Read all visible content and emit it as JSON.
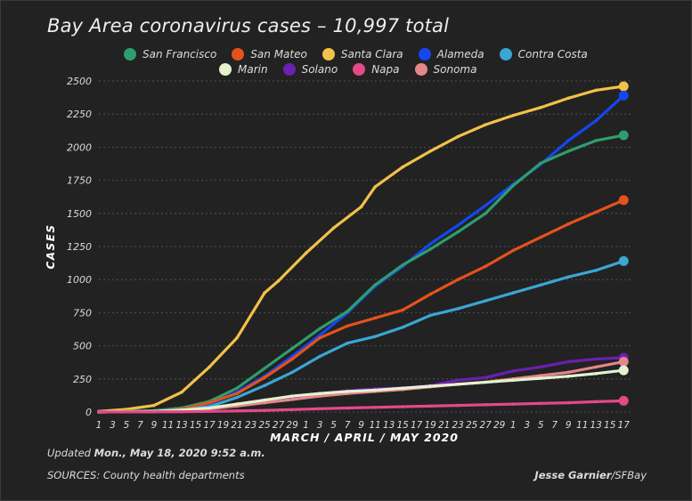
{
  "header": {
    "title": "Bay Area coronavirus cases – 10,997 total"
  },
  "legend": {
    "row1": [
      {
        "label": "San Francisco",
        "color": "#2e9e6e"
      },
      {
        "label": "San Mateo",
        "color": "#e5521c"
      },
      {
        "label": "Santa Clara",
        "color": "#f2c14a"
      },
      {
        "label": "Alameda",
        "color": "#1646f0"
      },
      {
        "label": "Contra Costa",
        "color": "#3aa7d3"
      }
    ],
    "row2": [
      {
        "label": "Marin",
        "color": "#e4f2cf"
      },
      {
        "label": "Solano",
        "color": "#6a20b0"
      },
      {
        "label": "Napa",
        "color": "#e44987"
      },
      {
        "label": "Sonoma",
        "color": "#e4868a"
      }
    ]
  },
  "footer": {
    "updated_prefix": "Updated ",
    "updated_date": "Mon., May 18, 2020 9:52 a.m.",
    "sources": "SOURCES: County health departments",
    "credit_name": "Jesse Garnier",
    "credit_suffix": "/SFBay"
  },
  "chart_data": {
    "type": "line",
    "title": "Bay Area coronavirus cases – 10,997 total",
    "xlabel": "MARCH / APRIL / MAY 2020",
    "ylabel": "CASES",
    "ylim": [
      0,
      2500
    ],
    "yticks": [
      0,
      250,
      500,
      750,
      1000,
      1250,
      1500,
      1750,
      2000,
      2250,
      2500
    ],
    "x_tick_labels": [
      "1",
      "3",
      "5",
      "7",
      "9",
      "11",
      "13",
      "15",
      "17",
      "19",
      "21",
      "23",
      "25",
      "27",
      "29",
      "1",
      "3",
      "5",
      "7",
      "9",
      "11",
      "13",
      "15",
      "17",
      "19",
      "21",
      "23",
      "25",
      "27",
      "29",
      "1",
      "3",
      "5",
      "7",
      "9",
      "11",
      "13",
      "15",
      "17"
    ],
    "x_day_range": [
      0,
      77
    ],
    "x_tick_step_days": 2,
    "grid": "horizontal",
    "legend_position": "top",
    "series": [
      {
        "name": "Santa Clara",
        "color": "#f2c14a",
        "points": [
          [
            0,
            5
          ],
          [
            4,
            20
          ],
          [
            8,
            50
          ],
          [
            12,
            150
          ],
          [
            16,
            340
          ],
          [
            20,
            560
          ],
          [
            24,
            900
          ],
          [
            26,
            990
          ],
          [
            30,
            1200
          ],
          [
            34,
            1390
          ],
          [
            38,
            1550
          ],
          [
            40,
            1700
          ],
          [
            44,
            1850
          ],
          [
            48,
            1970
          ],
          [
            52,
            2080
          ],
          [
            56,
            2170
          ],
          [
            60,
            2240
          ],
          [
            64,
            2300
          ],
          [
            68,
            2370
          ],
          [
            72,
            2430
          ],
          [
            76,
            2460
          ]
        ]
      },
      {
        "name": "Alameda",
        "color": "#1646f0",
        "points": [
          [
            0,
            0
          ],
          [
            8,
            5
          ],
          [
            12,
            20
          ],
          [
            16,
            60
          ],
          [
            20,
            150
          ],
          [
            24,
            270
          ],
          [
            28,
            420
          ],
          [
            32,
            580
          ],
          [
            36,
            750
          ],
          [
            40,
            950
          ],
          [
            44,
            1100
          ],
          [
            48,
            1270
          ],
          [
            52,
            1410
          ],
          [
            56,
            1560
          ],
          [
            60,
            1720
          ],
          [
            64,
            1870
          ],
          [
            68,
            2050
          ],
          [
            72,
            2200
          ],
          [
            76,
            2390
          ]
        ]
      },
      {
        "name": "San Francisco",
        "color": "#2e9e6e",
        "points": [
          [
            0,
            0
          ],
          [
            8,
            10
          ],
          [
            12,
            30
          ],
          [
            16,
            80
          ],
          [
            20,
            180
          ],
          [
            24,
            330
          ],
          [
            28,
            480
          ],
          [
            32,
            630
          ],
          [
            36,
            760
          ],
          [
            40,
            960
          ],
          [
            44,
            1110
          ],
          [
            48,
            1230
          ],
          [
            52,
            1360
          ],
          [
            56,
            1500
          ],
          [
            60,
            1710
          ],
          [
            64,
            1880
          ],
          [
            68,
            1970
          ],
          [
            72,
            2050
          ],
          [
            76,
            2090
          ]
        ]
      },
      {
        "name": "San Mateo",
        "color": "#e5521c",
        "points": [
          [
            0,
            0
          ],
          [
            8,
            5
          ],
          [
            12,
            20
          ],
          [
            16,
            70
          ],
          [
            20,
            140
          ],
          [
            24,
            260
          ],
          [
            28,
            400
          ],
          [
            32,
            560
          ],
          [
            36,
            650
          ],
          [
            40,
            710
          ],
          [
            44,
            770
          ],
          [
            48,
            890
          ],
          [
            52,
            1000
          ],
          [
            56,
            1100
          ],
          [
            60,
            1220
          ],
          [
            64,
            1320
          ],
          [
            68,
            1420
          ],
          [
            72,
            1510
          ],
          [
            76,
            1600
          ]
        ]
      },
      {
        "name": "Contra Costa",
        "color": "#3aa7d3",
        "points": [
          [
            0,
            0
          ],
          [
            8,
            5
          ],
          [
            12,
            15
          ],
          [
            16,
            40
          ],
          [
            20,
            110
          ],
          [
            24,
            200
          ],
          [
            28,
            300
          ],
          [
            32,
            420
          ],
          [
            36,
            520
          ],
          [
            40,
            570
          ],
          [
            44,
            640
          ],
          [
            48,
            730
          ],
          [
            52,
            780
          ],
          [
            56,
            840
          ],
          [
            60,
            900
          ],
          [
            64,
            960
          ],
          [
            68,
            1020
          ],
          [
            72,
            1070
          ],
          [
            76,
            1140
          ]
        ]
      },
      {
        "name": "Solano",
        "color": "#6a20b0",
        "points": [
          [
            0,
            0
          ],
          [
            8,
            2
          ],
          [
            12,
            8
          ],
          [
            16,
            20
          ],
          [
            20,
            50
          ],
          [
            24,
            80
          ],
          [
            28,
            110
          ],
          [
            32,
            140
          ],
          [
            36,
            160
          ],
          [
            40,
            175
          ],
          [
            44,
            180
          ],
          [
            48,
            200
          ],
          [
            52,
            240
          ],
          [
            56,
            260
          ],
          [
            60,
            310
          ],
          [
            64,
            340
          ],
          [
            68,
            380
          ],
          [
            72,
            400
          ],
          [
            76,
            410
          ]
        ]
      },
      {
        "name": "Sonoma",
        "color": "#e4868a",
        "points": [
          [
            0,
            0
          ],
          [
            8,
            2
          ],
          [
            12,
            10
          ],
          [
            16,
            25
          ],
          [
            20,
            45
          ],
          [
            24,
            70
          ],
          [
            28,
            95
          ],
          [
            32,
            120
          ],
          [
            36,
            140
          ],
          [
            40,
            155
          ],
          [
            44,
            170
          ],
          [
            48,
            190
          ],
          [
            52,
            210
          ],
          [
            56,
            225
          ],
          [
            60,
            250
          ],
          [
            64,
            275
          ],
          [
            68,
            300
          ],
          [
            72,
            340
          ],
          [
            76,
            380
          ]
        ]
      },
      {
        "name": "Marin",
        "color": "#e4f2cf",
        "points": [
          [
            0,
            0
          ],
          [
            8,
            5
          ],
          [
            12,
            15
          ],
          [
            16,
            30
          ],
          [
            20,
            60
          ],
          [
            24,
            90
          ],
          [
            28,
            120
          ],
          [
            32,
            140
          ],
          [
            36,
            155
          ],
          [
            40,
            165
          ],
          [
            44,
            180
          ],
          [
            48,
            195
          ],
          [
            52,
            210
          ],
          [
            56,
            225
          ],
          [
            60,
            240
          ],
          [
            64,
            255
          ],
          [
            68,
            270
          ],
          [
            72,
            290
          ],
          [
            76,
            315
          ]
        ]
      },
      {
        "name": "Napa",
        "color": "#e44987",
        "points": [
          [
            0,
            0
          ],
          [
            12,
            2
          ],
          [
            16,
            5
          ],
          [
            20,
            8
          ],
          [
            24,
            12
          ],
          [
            28,
            18
          ],
          [
            32,
            25
          ],
          [
            36,
            30
          ],
          [
            40,
            35
          ],
          [
            44,
            40
          ],
          [
            48,
            45
          ],
          [
            52,
            50
          ],
          [
            56,
            55
          ],
          [
            60,
            60
          ],
          [
            64,
            65
          ],
          [
            68,
            70
          ],
          [
            72,
            78
          ],
          [
            76,
            85
          ]
        ]
      }
    ]
  }
}
